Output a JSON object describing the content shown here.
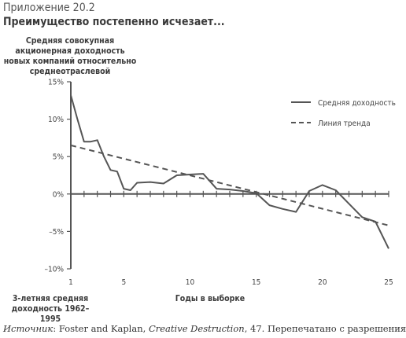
{
  "exhibit_label": "Приложение 20.2",
  "title": "Преимущество постепенно исчезает...",
  "source": {
    "prefix": "Источник",
    "sep1": ": Foster and Kaplan, ",
    "book": "Creative Destruction",
    "suffix": ", 47. Перепечатано с разрешения"
  },
  "chart_data": {
    "type": "line",
    "ylabel": "Средняя совокупная акционерная доходность новых компаний относительно среднеотраслевой",
    "xlabel": "Годы в выборке",
    "x_note": "3-летняя средняя доходность 1962–1995",
    "xlim": [
      1,
      25
    ],
    "ylim": [
      -10,
      15
    ],
    "x_ticks": [
      1,
      5,
      10,
      15,
      20,
      25
    ],
    "y_ticks": [
      15,
      10,
      5,
      0,
      -5,
      -10
    ],
    "y_tick_labels": [
      "15%",
      "10%",
      "5%",
      "0%",
      "–5%",
      "–10%"
    ],
    "legend_position": "top-right",
    "series": [
      {
        "name": "Средняя доходность",
        "style": "solid",
        "color": "#555555",
        "x": [
          1,
          1.5,
          2,
          2.5,
          3,
          3.5,
          4,
          4.5,
          5,
          5.5,
          6,
          7,
          8,
          9,
          10,
          11,
          12,
          13,
          14,
          15,
          16,
          17,
          18,
          19,
          20,
          21,
          22,
          23,
          24,
          25
        ],
        "y": [
          13.2,
          10,
          7,
          7,
          7.2,
          5,
          3.2,
          3,
          0.7,
          0.5,
          1.5,
          1.6,
          1.4,
          2.5,
          2.6,
          2.7,
          0.7,
          0.6,
          0.4,
          0.1,
          -1.5,
          -2,
          -2.4,
          0.4,
          1.2,
          0.5,
          -1.3,
          -3.1,
          -3.7,
          -7.3
        ]
      },
      {
        "name": "Линия тренда",
        "style": "dashed",
        "color": "#555555",
        "x": [
          1,
          25
        ],
        "y": [
          6.5,
          -4.2
        ]
      }
    ]
  }
}
